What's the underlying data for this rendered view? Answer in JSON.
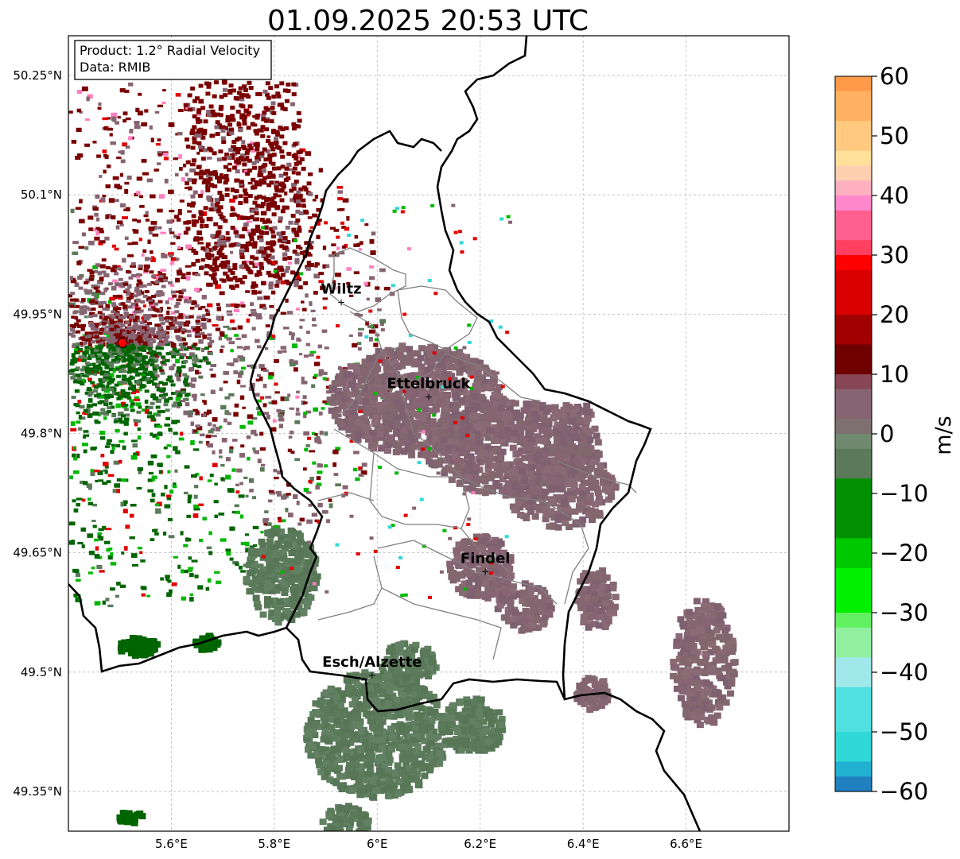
{
  "title": "01.09.2025 20:53 UTC",
  "info_box": {
    "product": "Product: 1.2° Radial Velocity",
    "source": "Data: RMIB"
  },
  "map": {
    "lon_range": [
      5.4,
      6.8
    ],
    "lat_range": [
      49.3,
      50.3
    ],
    "lon_ticks": [
      "5.6°E",
      "5.8°E",
      "6°E",
      "6.2°E",
      "6.4°E",
      "6.6°E"
    ],
    "lat_ticks": [
      "50.25°N",
      "50.1°N",
      "49.95°N",
      "49.8°N",
      "49.65°N",
      "49.5°N",
      "49.35°N"
    ],
    "radar_site": {
      "lon": 5.505,
      "lat": 49.914
    },
    "cities": [
      {
        "name": "Wiltz",
        "lon": 5.93,
        "lat": 49.966
      },
      {
        "name": "Ettelbruck",
        "lon": 6.1,
        "lat": 49.847
      },
      {
        "name": "Findel",
        "lon": 6.21,
        "lat": 49.627
      },
      {
        "name": "Esch/Alzette",
        "lon": 5.99,
        "lat": 49.497
      }
    ]
  },
  "colorbar": {
    "label": "m/s",
    "range": [
      -60,
      60
    ],
    "ticks": [
      "60",
      "50",
      "40",
      "30",
      "20",
      "10",
      "0",
      "−10",
      "−20",
      "−30",
      "−40",
      "−50",
      "−60"
    ]
  },
  "colors": {
    "inbound_dark": "#006400",
    "inbound_mid": "#00b800",
    "near_zero_green": "#5a7a5a",
    "near_zero_mauve": "#866472",
    "outbound_dark": "#7a0000",
    "outbound_red": "#e00000",
    "pink": "#ff80c0",
    "cyan": "#30d8d8",
    "orange": "#ffa050",
    "radar_marker": "#ff0000"
  }
}
